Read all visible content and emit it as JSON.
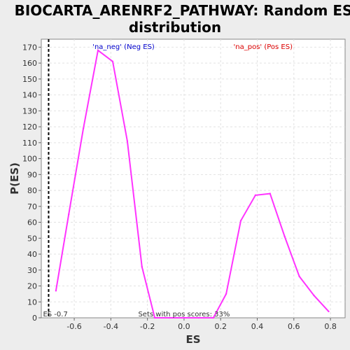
{
  "chart_data": {
    "type": "line",
    "title_line1": "BIOCARTA_ARENRF2_PATHWAY: Random ES",
    "title_line2": "distribution",
    "xlabel": "ES",
    "ylabel": "P(ES)",
    "xlim": [
      -0.78,
      0.88
    ],
    "ylim": [
      0,
      175
    ],
    "xticks": [
      -0.6,
      -0.4,
      -0.2,
      0.0,
      0.2,
      0.4,
      0.6,
      0.8
    ],
    "xtick_labels": [
      "-0.6",
      "-0.4",
      "-0.2",
      "0.0",
      "0.2",
      "0.4",
      "0.6",
      "0.8"
    ],
    "yticks": [
      0,
      10,
      20,
      30,
      40,
      50,
      60,
      70,
      80,
      90,
      100,
      110,
      120,
      130,
      140,
      150,
      160,
      170
    ],
    "grid": true,
    "line_color": "#ff33ff",
    "series": [
      {
        "x": [
          -0.7,
          -0.63,
          -0.55,
          -0.47,
          -0.39,
          -0.31,
          -0.23,
          -0.16,
          -0.08,
          0.0,
          0.08,
          0.16,
          0.23,
          0.31,
          0.39,
          0.47,
          0.55,
          0.63,
          0.71,
          0.79
        ],
        "y": [
          17,
          65,
          119,
          168,
          161,
          111,
          32,
          0,
          0,
          0,
          0,
          0,
          15,
          61,
          77,
          78,
          51,
          26,
          14,
          4
        ]
      }
    ],
    "legend": [
      {
        "label": "'na_neg' (Neg ES)",
        "color": "#0000cc"
      },
      {
        "label": "'na_pos' (Pos ES)",
        "color": "#dd0000"
      }
    ],
    "marker_line": {
      "x": -0.74,
      "label": "ES -0.7"
    },
    "annotation": "Sets with pos scores: 33%"
  }
}
